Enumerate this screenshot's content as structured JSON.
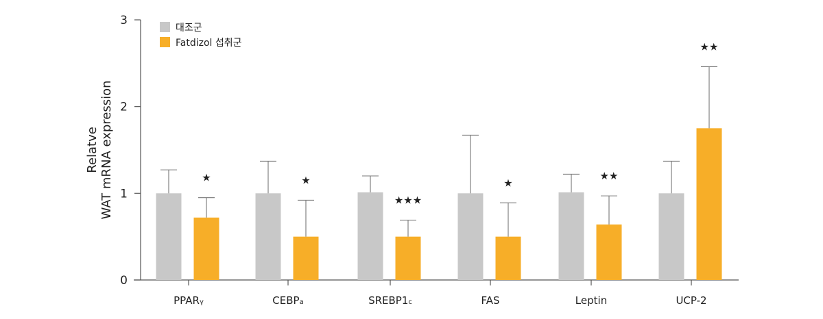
{
  "chart_data": {
    "type": "bar",
    "ylabel_lines": [
      "Relatve",
      "WAT mRNA expression"
    ],
    "ylim": [
      0,
      3
    ],
    "yticks": [
      "0",
      "1",
      "2",
      "3"
    ],
    "categories": [
      {
        "main": "PPAR",
        "sub": "γ"
      },
      {
        "main": "CEBP",
        "sub": "a"
      },
      {
        "main": "SREBP1",
        "sub": "c"
      },
      {
        "main": "FAS",
        "sub": ""
      },
      {
        "main": "Leptin",
        "sub": ""
      },
      {
        "main": "UCP-2",
        "sub": ""
      }
    ],
    "series": [
      {
        "name": "대조군",
        "color": "#c8c8c8",
        "values": [
          1.0,
          1.0,
          1.01,
          1.0,
          1.01,
          1.0
        ],
        "errors": [
          0.27,
          0.37,
          0.19,
          0.67,
          0.21,
          0.37
        ]
      },
      {
        "name": "Fatdizol 섭취군",
        "color": "#f7ae28",
        "values": [
          0.72,
          0.5,
          0.5,
          0.5,
          0.64,
          1.75
        ],
        "errors": [
          0.23,
          0.42,
          0.19,
          0.39,
          0.33,
          0.71
        ]
      }
    ],
    "significance": [
      "★",
      "★",
      "★★★",
      "★",
      "★★",
      "★★"
    ],
    "legend_position": "top-left",
    "grid": false
  }
}
